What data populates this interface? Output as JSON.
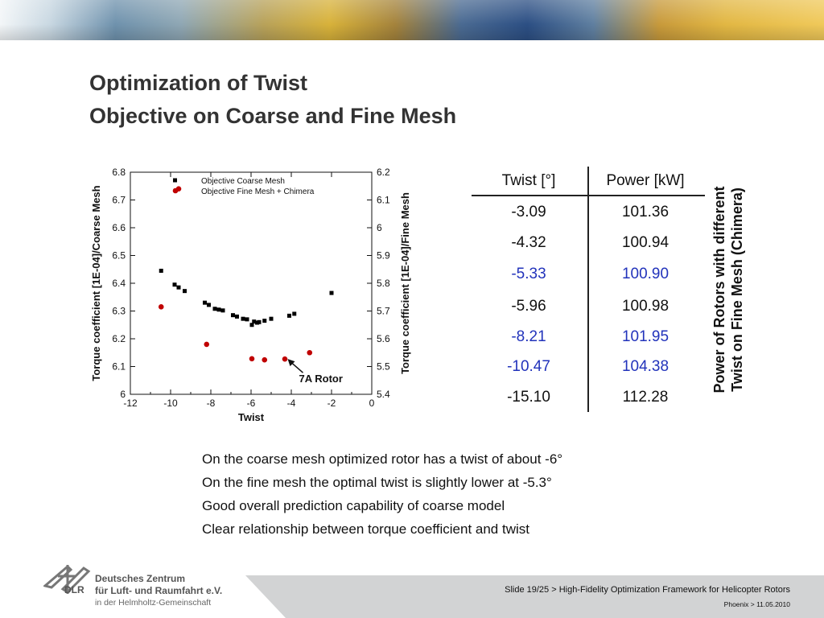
{
  "slide": {
    "title": "Optimization of Twist",
    "subtitle": "Objective on Coarse and Fine Mesh"
  },
  "chart_data": {
    "type": "scatter",
    "xlabel": "Twist",
    "ylabel_left": "Torque coefficient [1E-04]/Coarse Mesh",
    "ylabel_right": "Torque coefficient [1E-04]/Fine Mesh",
    "xlim": [
      -12,
      0
    ],
    "ylim_left": [
      6.0,
      6.8
    ],
    "ylim_right": [
      5.4,
      6.2
    ],
    "x_ticks": [
      "-12",
      "-10",
      "-8",
      "-6",
      "-4",
      "-2",
      "0"
    ],
    "y_ticks_left": [
      "6",
      "6.1",
      "6.2",
      "6.3",
      "6.4",
      "6.5",
      "6.6",
      "6.7",
      "6.8"
    ],
    "y_ticks_right": [
      "5.4",
      "5.5",
      "5.6",
      "5.7",
      "5.8",
      "5.9",
      "6",
      "6.1",
      "6.2"
    ],
    "annotation": "7A Rotor",
    "annotation_point": {
      "x": -4.3,
      "y": 5.53
    },
    "series": [
      {
        "name": "Objective Coarse Mesh",
        "axis": "left",
        "color": "#000000",
        "marker": "square",
        "points": [
          {
            "x": -10.47,
            "y": 6.445
          },
          {
            "x": -9.8,
            "y": 6.395
          },
          {
            "x": -9.6,
            "y": 6.385
          },
          {
            "x": -9.3,
            "y": 6.372
          },
          {
            "x": -8.3,
            "y": 6.33
          },
          {
            "x": -8.1,
            "y": 6.322
          },
          {
            "x": -7.8,
            "y": 6.308
          },
          {
            "x": -7.6,
            "y": 6.305
          },
          {
            "x": -7.4,
            "y": 6.302
          },
          {
            "x": -6.9,
            "y": 6.285
          },
          {
            "x": -6.7,
            "y": 6.28
          },
          {
            "x": -6.4,
            "y": 6.272
          },
          {
            "x": -6.2,
            "y": 6.27
          },
          {
            "x": -5.96,
            "y": 6.25
          },
          {
            "x": -5.85,
            "y": 6.262
          },
          {
            "x": -5.7,
            "y": 6.258
          },
          {
            "x": -5.6,
            "y": 6.26
          },
          {
            "x": -5.33,
            "y": 6.265
          },
          {
            "x": -5.0,
            "y": 6.272
          },
          {
            "x": -4.1,
            "y": 6.283
          },
          {
            "x": -3.85,
            "y": 6.29
          },
          {
            "x": -2.0,
            "y": 6.365
          }
        ]
      },
      {
        "name": "Objective Fine Mesh + Chimera",
        "axis": "right",
        "color": "#c00000",
        "marker": "circle",
        "points": [
          {
            "x": -10.47,
            "y": 5.715
          },
          {
            "x": -9.6,
            "y": 6.14
          },
          {
            "x": -8.21,
            "y": 5.58
          },
          {
            "x": -5.96,
            "y": 5.528
          },
          {
            "x": -5.33,
            "y": 5.524
          },
          {
            "x": -4.32,
            "y": 5.527
          },
          {
            "x": -3.09,
            "y": 5.55
          }
        ]
      }
    ]
  },
  "table": {
    "headers": [
      "Twist [°]",
      "Power [kW]"
    ],
    "rows": [
      {
        "twist": "-3.09",
        "power": "101.36",
        "highlight": false
      },
      {
        "twist": "-4.32",
        "power": "100.94",
        "highlight": false
      },
      {
        "twist": "-5.33",
        "power": "100.90",
        "highlight": true
      },
      {
        "twist": "-5.96",
        "power": "100.98",
        "highlight": false
      },
      {
        "twist": "-8.21",
        "power": "101.95",
        "highlight": true
      },
      {
        "twist": "-10.47",
        "power": "104.38",
        "highlight": true
      },
      {
        "twist": "-15.10",
        "power": "112.28",
        "highlight": false
      }
    ],
    "highlight_color": "#2233bb"
  },
  "side_caption": {
    "line1": "Power of Rotors with different",
    "line2": "Twist on Fine Mesh (Chimera)"
  },
  "bullets": [
    "On the coarse mesh optimized rotor has a twist of about -6°",
    "On the fine mesh the optimal twist is slightly lower at -5.3°",
    "Good overall prediction capability of coarse model",
    "Clear relationship between torque coefficient and twist"
  ],
  "footer": {
    "slide_info": "Slide 19/25 > High-Fidelity Optimization Framework for Helicopter Rotors",
    "event_info": "Phoenix > 11.05.2010"
  },
  "logo": {
    "abbr": "DLR",
    "line1": "Deutsches Zentrum",
    "line2": "für Luft- und Raumfahrt e.V.",
    "line3": "in der Helmholtz-Gemeinschaft"
  }
}
